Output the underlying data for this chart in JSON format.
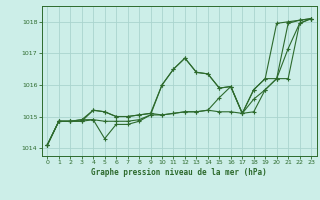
{
  "title": "Graphe pression niveau de la mer (hPa)",
  "background_color": "#cceee8",
  "grid_color": "#aad4ce",
  "line_color": "#2d6a2d",
  "xlim": [
    -0.5,
    23.5
  ],
  "ylim": [
    1013.75,
    1018.5
  ],
  "yticks": [
    1014,
    1015,
    1016,
    1017,
    1018
  ],
  "xticks": [
    0,
    1,
    2,
    3,
    4,
    5,
    6,
    7,
    8,
    9,
    10,
    11,
    12,
    13,
    14,
    15,
    16,
    17,
    18,
    19,
    20,
    21,
    22,
    23
  ],
  "series": [
    [
      1014.1,
      1014.85,
      1014.85,
      1014.85,
      1014.9,
      1014.85,
      1014.85,
      1014.85,
      1014.9,
      1015.05,
      1016.0,
      1016.5,
      1016.85,
      1016.4,
      1016.35,
      1015.9,
      1015.95,
      1015.1,
      1015.85,
      1016.2,
      1017.95,
      1018.0,
      1018.05,
      1018.1
    ],
    [
      1014.1,
      1014.85,
      1014.85,
      1014.85,
      1015.2,
      1015.15,
      1015.0,
      1015.0,
      1015.05,
      1015.1,
      1016.0,
      1016.5,
      1016.85,
      1016.4,
      1016.35,
      1015.9,
      1015.95,
      1015.1,
      1015.85,
      1016.2,
      1016.2,
      1017.15,
      1017.95,
      1018.1
    ],
    [
      1014.1,
      1014.85,
      1014.85,
      1014.9,
      1015.2,
      1015.15,
      1015.0,
      1015.0,
      1015.05,
      1015.1,
      1015.05,
      1015.1,
      1015.15,
      1015.15,
      1015.2,
      1015.6,
      1015.95,
      1015.1,
      1015.55,
      1015.85,
      1016.2,
      1016.2,
      1017.95,
      1018.1
    ],
    [
      1014.1,
      1014.85,
      1014.85,
      1014.9,
      1014.9,
      1014.3,
      1014.75,
      1014.75,
      1014.85,
      1015.05,
      1015.05,
      1015.1,
      1015.15,
      1015.15,
      1015.2,
      1015.15,
      1015.15,
      1015.1,
      1015.15,
      1015.85,
      1016.2,
      1017.95,
      1018.05,
      1018.1
    ]
  ]
}
